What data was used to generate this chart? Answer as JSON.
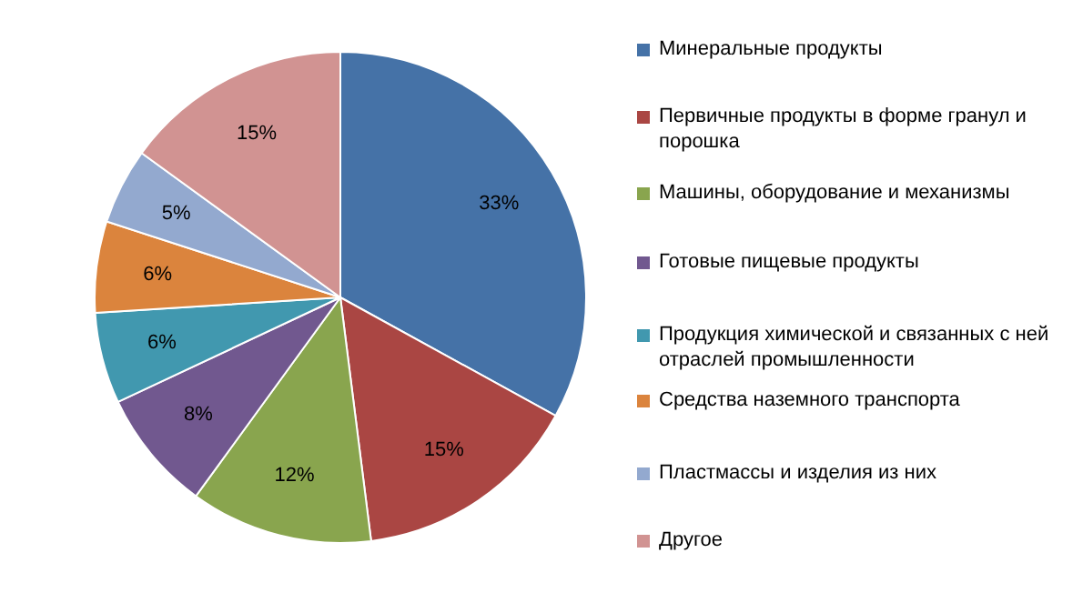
{
  "chart_data": {
    "type": "pie",
    "categories": [
      "Минеральные продукты",
      "Первичные продукты в форме гранул и порошка",
      "Машины, оборудование и механизмы",
      "Готовые пищевые продукты",
      "Продукция химической и связанных с ней отраслей промышленности",
      "Средства наземного транспорта",
      "Пластмассы и изделия из них",
      "Другое"
    ],
    "values": [
      33,
      15,
      12,
      8,
      6,
      6,
      5,
      15
    ],
    "value_labels": [
      "33%",
      "15%",
      "12%",
      "8%",
      "6%",
      "6%",
      "5%",
      "15%"
    ],
    "colors": [
      "#4572a7",
      "#aa4643",
      "#89a54e",
      "#71588f",
      "#4198af",
      "#db843d",
      "#93a9cf",
      "#d19392"
    ],
    "legend": "right"
  }
}
